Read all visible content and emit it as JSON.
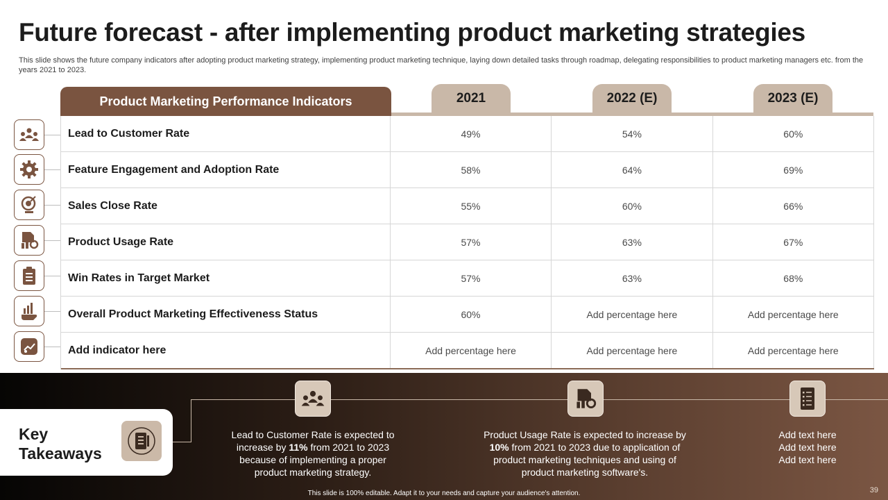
{
  "slide": {
    "title": "Future forecast - after implementing product marketing strategies",
    "subtitle": "This slide shows the future company indicators after adopting product marketing strategy, implementing product marketing technique, laying down detailed tasks through roadmap, delegating responsibilities to product marketing managers etc. from the years 2021 to 2023.",
    "page_number": "39",
    "footer": "This slide is 100% editable. Adapt it to your needs and capture your audience's attention."
  },
  "table": {
    "header": "Product Marketing Performance Indicators",
    "years": [
      "2021",
      "2022 (E)",
      "2023 (E)"
    ],
    "rows": [
      {
        "icon": "people-network-icon",
        "label": "Lead to Customer Rate",
        "values": [
          "49%",
          "54%",
          "60%"
        ]
      },
      {
        "icon": "gear-badge-icon",
        "label": "Feature Engagement and Adoption Rate",
        "values": [
          "58%",
          "64%",
          "69%"
        ]
      },
      {
        "icon": "globe-target-icon",
        "label": "Sales Close Rate",
        "values": [
          "55%",
          "60%",
          "66%"
        ]
      },
      {
        "icon": "document-chart-icon",
        "label": "Product Usage Rate",
        "values": [
          "57%",
          "63%",
          "67%"
        ]
      },
      {
        "icon": "clipboard-list-icon",
        "label": "Win Rates  in Target Market",
        "values": [
          "57%",
          "63%",
          "68%"
        ]
      },
      {
        "icon": "hand-chart-icon",
        "label": "Overall Product Marketing Effectiveness  Status",
        "values": [
          "60%",
          "Add percentage here",
          "Add percentage here"
        ]
      },
      {
        "icon": "presentation-board-icon",
        "label": "Add indicator here",
        "values": [
          "Add percentage here",
          "Add percentage here",
          "Add percentage here"
        ]
      }
    ]
  },
  "takeaways": {
    "heading_line1": "Key",
    "heading_line2": "Takeaways",
    "items": [
      {
        "icon": "people-network-icon",
        "before": "Lead to Customer Rate is expected to increase by ",
        "bold": "11%",
        "after": " from 2021 to 2023 because of implementing a proper product marketing strategy."
      },
      {
        "icon": "document-chart-icon",
        "before": "Product Usage Rate is expected to increase by ",
        "bold": "10%",
        "after": " from 2021 to 2023 due to application of product marketing techniques and using of product marketing software's."
      },
      {
        "icon": "checklist-icon",
        "lines": [
          "Add text here",
          "Add text here",
          "Add text here"
        ]
      }
    ]
  },
  "colors": {
    "accent": "#7a5440",
    "tab": "#c9b8a8"
  }
}
